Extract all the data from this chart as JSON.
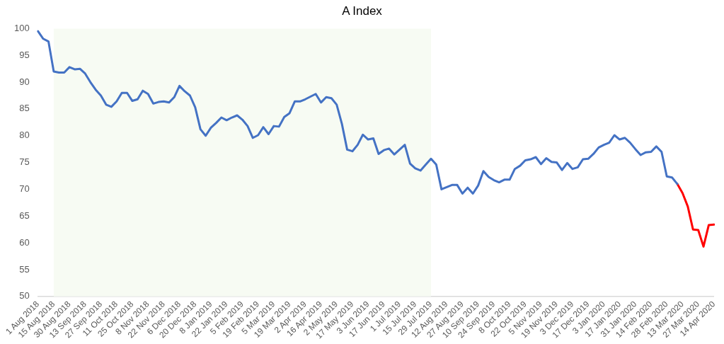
{
  "chart_data": {
    "type": "line",
    "title": "A Index",
    "categories": [
      "1 Aug 2018",
      null,
      null,
      "15 Aug 2018",
      null,
      null,
      "30 Aug 2018",
      null,
      null,
      "13 Sep 2018",
      null,
      null,
      "27 Sep 2018",
      null,
      null,
      "11 Oct 2018",
      null,
      null,
      "25 Oct 2018",
      null,
      null,
      "8 Nov 2018",
      null,
      null,
      "22 Nov 2018",
      null,
      null,
      "6 Dec 2018",
      null,
      null,
      "20 Dec 2018",
      null,
      null,
      "8 Jan 2019",
      null,
      null,
      "22 Jan 2019",
      null,
      null,
      "5 Feb 2019",
      null,
      null,
      "19 Feb 2019",
      null,
      null,
      "5 Mar 2019",
      null,
      null,
      "19 Mar 2019",
      null,
      null,
      "2 Apr 2019",
      null,
      null,
      "16 Apr 2019",
      null,
      null,
      "2 May 2019",
      null,
      null,
      "17 May 2019",
      null,
      null,
      "3 Jun 2019",
      null,
      null,
      "17 Jun 2019",
      null,
      null,
      "1 Jul 2019",
      null,
      null,
      "15 Jul 2019",
      null,
      null,
      "29 Jul 2019",
      null,
      null,
      "12 Aug 2019",
      null,
      null,
      "27 Aug 2019",
      null,
      null,
      "10 Sep 2019",
      null,
      null,
      "24 Sep 2019",
      null,
      null,
      "8 Oct 2019",
      null,
      null,
      "22 Oct 2019",
      null,
      null,
      "5 Nov 2019",
      null,
      null,
      "19 Nov 2019",
      null,
      null,
      "3 Dec 2019",
      null,
      null,
      "17 Dec 2019",
      null,
      null,
      "3 Jan 2020",
      null,
      null,
      "17 Jan 2020",
      null,
      null,
      "31 Jan 2020",
      null,
      null,
      "14 Feb 2020",
      null,
      null,
      "28 Feb 2020",
      null,
      null,
      "13 Mar 2020",
      null,
      null,
      "27 Mar 2020",
      null,
      null,
      "14 Apr 2020"
    ],
    "series": [
      {
        "color": "#4472c4",
        "values": [
          99.5,
          98.1,
          97.6,
          92.0,
          91.8,
          91.8,
          92.8,
          92.4,
          92.5,
          91.6,
          90.0,
          88.6,
          87.5,
          85.8,
          85.4,
          86.4,
          88.0,
          88.0,
          86.5,
          86.8,
          88.4,
          87.8,
          86.0,
          86.3,
          86.4,
          86.2,
          87.2,
          89.3,
          88.3,
          87.5,
          85.3,
          81.2,
          80.0,
          81.5,
          82.4,
          83.4,
          82.9,
          83.4,
          83.8,
          83.0,
          81.8,
          79.6,
          80.1,
          81.6,
          80.3,
          81.8,
          81.7,
          83.5,
          84.2,
          86.4,
          86.4,
          86.8,
          87.3,
          87.8,
          86.2,
          87.2,
          87.0,
          85.8,
          82.2,
          77.4,
          77.1,
          78.3,
          80.2,
          79.3,
          79.5,
          76.6,
          77.3,
          77.6,
          76.5,
          77.4,
          78.3,
          74.8,
          73.9,
          73.5,
          74.6,
          75.7,
          74.6,
          70.0,
          70.4,
          70.8,
          70.8,
          69.2,
          70.3,
          69.2,
          70.7,
          73.4,
          72.3,
          71.7,
          71.3,
          71.8,
          71.8,
          73.8,
          74.4,
          75.4,
          75.6,
          76.0,
          74.7,
          75.8,
          75.1,
          75.0,
          73.6,
          74.9,
          73.8,
          74.1,
          75.6,
          75.7,
          76.6,
          77.8,
          78.3,
          78.7,
          80.1,
          79.3,
          79.6,
          78.7,
          77.5,
          76.4,
          76.9,
          77.0,
          78.0,
          77.0,
          72.4,
          72.2,
          71.0,
          null,
          null,
          null,
          null,
          null,
          null,
          null
        ]
      },
      {
        "color": "#ff0000",
        "values": [
          null,
          null,
          null,
          null,
          null,
          null,
          null,
          null,
          null,
          null,
          null,
          null,
          null,
          null,
          null,
          null,
          null,
          null,
          null,
          null,
          null,
          null,
          null,
          null,
          null,
          null,
          null,
          null,
          null,
          null,
          null,
          null,
          null,
          null,
          null,
          null,
          null,
          null,
          null,
          null,
          null,
          null,
          null,
          null,
          null,
          null,
          null,
          null,
          null,
          null,
          null,
          null,
          null,
          null,
          null,
          null,
          null,
          null,
          null,
          null,
          null,
          null,
          null,
          null,
          null,
          null,
          null,
          null,
          null,
          null,
          null,
          null,
          null,
          null,
          null,
          null,
          null,
          null,
          null,
          null,
          null,
          null,
          null,
          null,
          null,
          null,
          null,
          null,
          null,
          null,
          null,
          null,
          null,
          null,
          null,
          null,
          null,
          null,
          null,
          null,
          null,
          null,
          null,
          null,
          null,
          null,
          null,
          null,
          null,
          null,
          null,
          null,
          null,
          null,
          null,
          null,
          null,
          null,
          null,
          null,
          null,
          null,
          71.0,
          69.3,
          66.8,
          62.5,
          62.4,
          59.3,
          63.3,
          63.4
        ]
      }
    ],
    "ylim": [
      50,
      100
    ],
    "yticks": [
      50,
      55,
      60,
      65,
      70,
      75,
      80,
      85,
      90,
      95,
      100
    ],
    "bands": [
      {
        "axis": "x",
        "from": "15 Aug 2018",
        "to": "29 Jul 2019",
        "color": "#f7fbf3"
      }
    ],
    "grid": false,
    "legend": false,
    "marker": "none",
    "line_style": "solid"
  }
}
